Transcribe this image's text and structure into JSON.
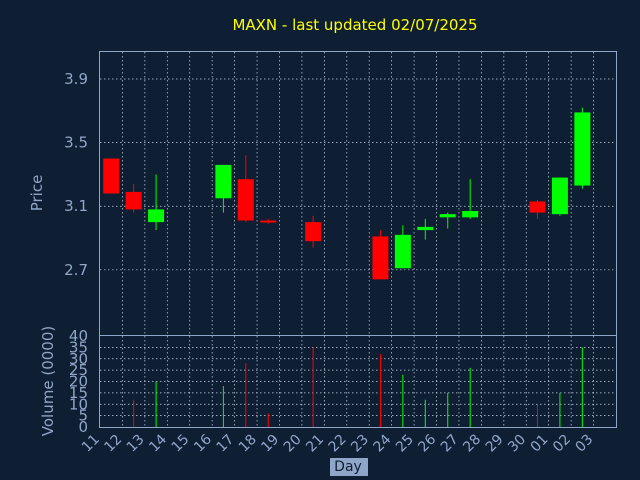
{
  "chart_data": {
    "type": "candlestick",
    "title": "MAXN - last updated 02/07/2025",
    "xlabel": "Day",
    "price_panel": {
      "ylabel": "Price",
      "yticks": [
        "2.7",
        "3.1",
        "3.5",
        "3.9"
      ],
      "ylim": [
        2.29,
        4.07
      ]
    },
    "volume_panel": {
      "ylabel": "Volume (0000)",
      "yticks": [
        "0",
        "5",
        "10",
        "15",
        "20",
        "25",
        "30",
        "35",
        "40"
      ],
      "ylim": [
        0,
        40
      ]
    },
    "x_ticks": [
      "11",
      "12",
      "13",
      "14",
      "15",
      "16",
      "17",
      "18",
      "19",
      "20",
      "21",
      "22",
      "23",
      "24",
      "25",
      "26",
      "27",
      "28",
      "29",
      "30",
      "01",
      "02",
      "03"
    ],
    "candles": [
      {
        "day": "11",
        "open": 3.4,
        "high": 3.4,
        "low": 3.18,
        "close": 3.18,
        "volume": 0
      },
      {
        "day": "12",
        "open": 3.19,
        "high": 3.24,
        "low": 3.06,
        "close": 3.08,
        "volume": 12
      },
      {
        "day": "13",
        "open": 3.0,
        "high": 3.3,
        "low": 2.95,
        "close": 3.08,
        "volume": 20
      },
      {
        "day": "16",
        "open": 3.15,
        "high": 3.36,
        "low": 3.06,
        "close": 3.36,
        "volume": 18
      },
      {
        "day": "17",
        "open": 3.27,
        "high": 3.42,
        "low": 3.0,
        "close": 3.01,
        "volume": 28
      },
      {
        "day": "18",
        "open": 3.01,
        "high": 3.02,
        "low": 2.99,
        "close": 3.0,
        "volume": 6
      },
      {
        "day": "20",
        "open": 3.0,
        "high": 3.04,
        "low": 2.84,
        "close": 2.88,
        "volume": 35
      },
      {
        "day": "23",
        "open": 2.91,
        "high": 2.95,
        "low": 2.64,
        "close": 2.64,
        "volume": 32
      },
      {
        "day": "24",
        "open": 2.71,
        "high": 2.98,
        "low": 2.71,
        "close": 2.92,
        "volume": 23
      },
      {
        "day": "25",
        "open": 2.95,
        "high": 3.02,
        "low": 2.89,
        "close": 2.97,
        "volume": 12
      },
      {
        "day": "26",
        "open": 3.03,
        "high": 3.06,
        "low": 2.96,
        "close": 3.05,
        "volume": 15
      },
      {
        "day": "27",
        "open": 3.03,
        "high": 3.27,
        "low": 3.02,
        "close": 3.07,
        "volume": 26
      },
      {
        "day": "30",
        "open": 3.13,
        "high": 3.14,
        "low": 3.02,
        "close": 3.06,
        "volume": 10
      },
      {
        "day": "01",
        "open": 3.05,
        "high": 3.28,
        "low": 3.04,
        "close": 3.28,
        "volume": 15
      },
      {
        "day": "02",
        "open": 3.23,
        "high": 3.72,
        "low": 3.21,
        "close": 3.69,
        "volume": 35
      }
    ],
    "colors": {
      "background": "#0f1f33",
      "title": "#ffff00",
      "axis_text": "#8fa6c8",
      "up": "#00ff00",
      "down": "#ff0000"
    }
  }
}
